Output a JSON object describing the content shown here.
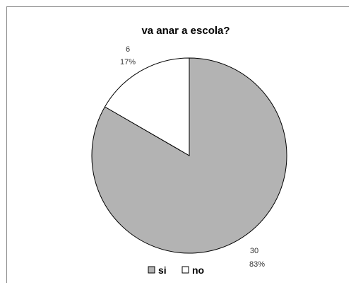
{
  "chart_data": {
    "type": "pie",
    "title": "va anar a escola?",
    "categories": [
      "si",
      "no"
    ],
    "values": [
      30,
      6
    ],
    "percent_labels": [
      "83%",
      "17%"
    ],
    "value_labels": [
      "30",
      "6"
    ],
    "colors": [
      "#b3b3b3",
      "#ffffff"
    ],
    "stroke_color": "#000000",
    "legend": {
      "position": "bottom",
      "entries": [
        "si",
        "no"
      ]
    }
  }
}
